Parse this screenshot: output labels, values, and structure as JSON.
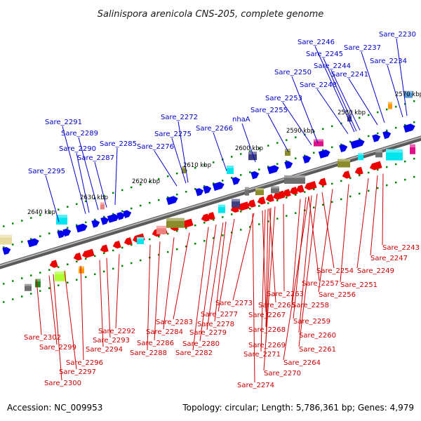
{
  "title": "Salinispora arenicola CNS-205, complete genome",
  "accession": "Accession: NC_009953",
  "topology": "Topology: circular; Length: 5,786,361 bp; Genes: 4,979",
  "ticks": [
    "2570 kbp",
    "2580 kbp",
    "2590 kbp",
    "2600 kbp",
    "2610 kbp",
    "2620 kbp",
    "2630 kbp",
    "2640 kbp"
  ],
  "forward_labels": [
    "Sare_2230",
    "Sare_2246",
    "Sare_2237",
    "Sare_2245",
    "Sare_2234",
    "Sare_2244",
    "Sare_2250",
    "Sare_2241",
    "Sare_2248",
    "Sare_2253",
    "Sare_2255",
    "Sare_2272",
    "nhaA",
    "Sare_2266",
    "Sare_2291",
    "Sare_2275",
    "Sare_2289",
    "Sare_2276",
    "Sare_2290",
    "Sare_2285",
    "Sare_2287",
    "Sare_2295"
  ],
  "reverse_labels": [
    "Sare_2243",
    "Sare_2247",
    "Sare_2249",
    "Sare_2254",
    "Sare_2251",
    "Sare_2257",
    "Sare_2256",
    "Sare_2263",
    "Sare_2258",
    "Sare_2265",
    "Sare_2273",
    "Sare_2259",
    "Sare_2267",
    "Sare_2277",
    "Sare_2278",
    "Sare_2260",
    "Sare_2283",
    "Sare_2268",
    "Sare_2279",
    "Sare_2261",
    "Sare_2284",
    "Sare_2292",
    "Sare_2280",
    "Sare_2269",
    "Sare_2302",
    "Sare_2293",
    "Sare_2286",
    "Sare_2282",
    "Sare_2299",
    "Sare_2294",
    "Sare_2288",
    "Sare_2271",
    "Sare_2264",
    "Sare_2296",
    "Sare_2297",
    "Sare_2270",
    "Sare_2300",
    "Sare_2274"
  ],
  "colors": {
    "forward": "#0000ee",
    "reverse": "#ee0000",
    "backbone": "#808080",
    "tick_mark": "#008800",
    "cyan": "#00e5ee",
    "olive": "#8b8b2a",
    "pink": "#f08080",
    "orange": "#ff9900",
    "grey": "#6e6e6e",
    "navy": "#404080",
    "teal": "#4f94cd",
    "magenta": "#e0108a"
  }
}
